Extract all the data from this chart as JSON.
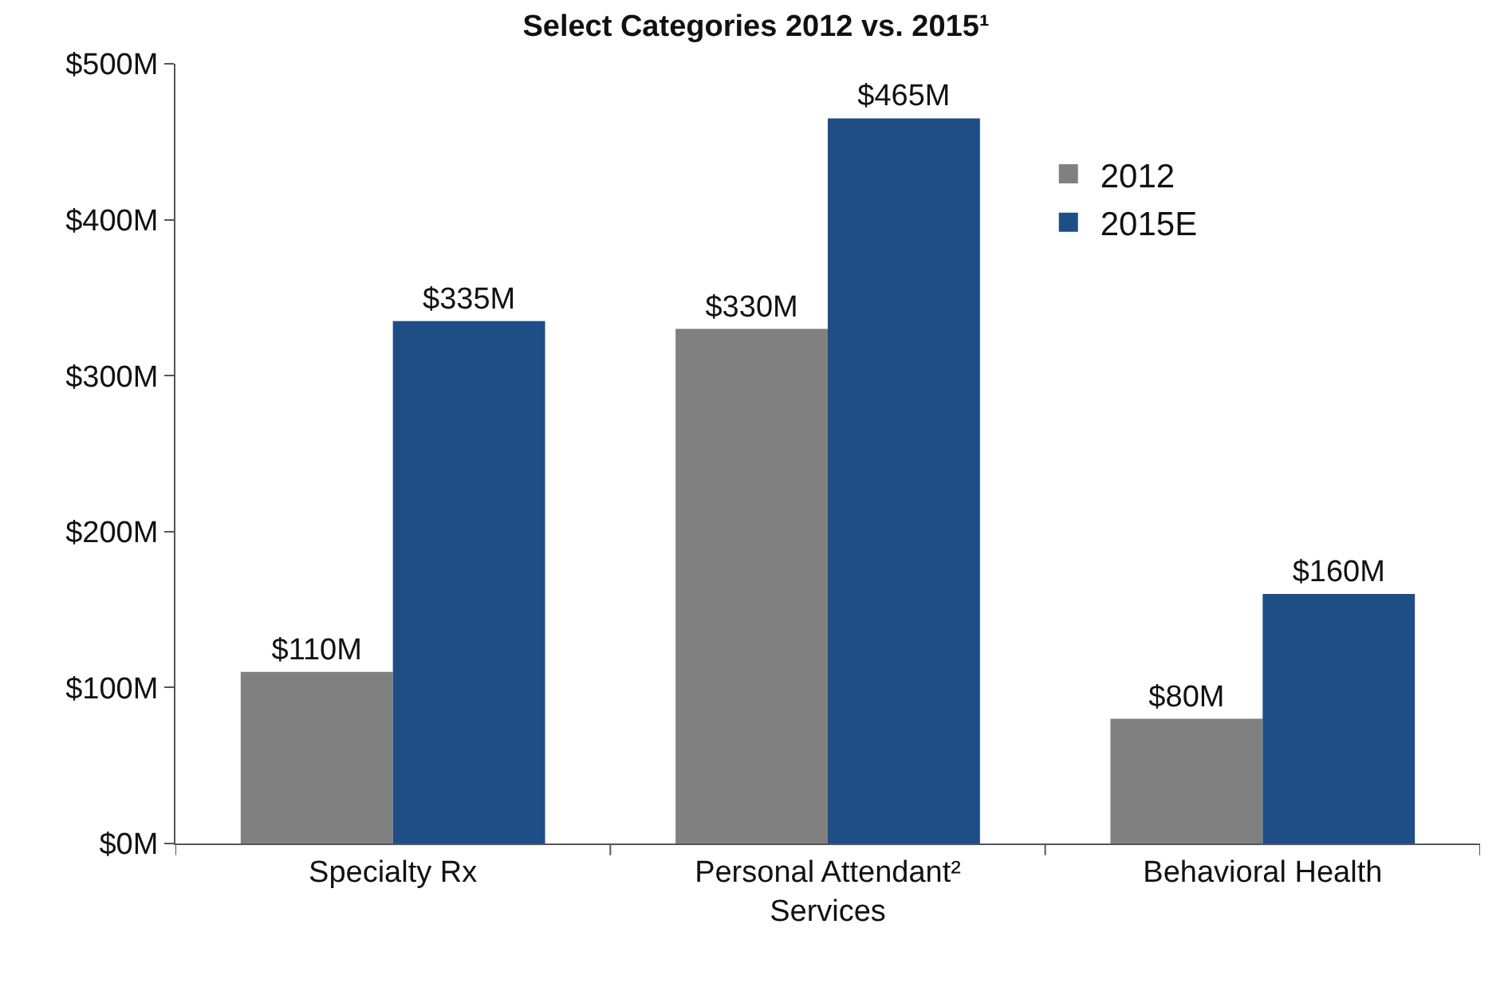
{
  "chart_data": {
    "type": "bar",
    "title": "Select Categories 2012 vs. 2015¹",
    "categories": [
      "Specialty Rx",
      "Personal Attendant² Services",
      "Behavioral Health"
    ],
    "series": [
      {
        "name": "2012",
        "color": "#808080",
        "values": [
          110,
          330,
          80
        ],
        "value_labels": [
          "$110M",
          "$330M",
          "$80M"
        ]
      },
      {
        "name": "2015E",
        "color": "#1f4e87",
        "values": [
          335,
          465,
          160
        ],
        "value_labels": [
          "$335M",
          "$465M",
          "$160M"
        ]
      }
    ],
    "ylim": [
      0,
      500
    ],
    "yticks": [
      {
        "value": 0,
        "label": "$0M"
      },
      {
        "value": 100,
        "label": "$100M"
      },
      {
        "value": 200,
        "label": "$200M"
      },
      {
        "value": 300,
        "label": "$300M"
      },
      {
        "value": 400,
        "label": "$400M"
      },
      {
        "value": 500,
        "label": "$500M"
      }
    ],
    "grid": false,
    "legend": "top right"
  }
}
